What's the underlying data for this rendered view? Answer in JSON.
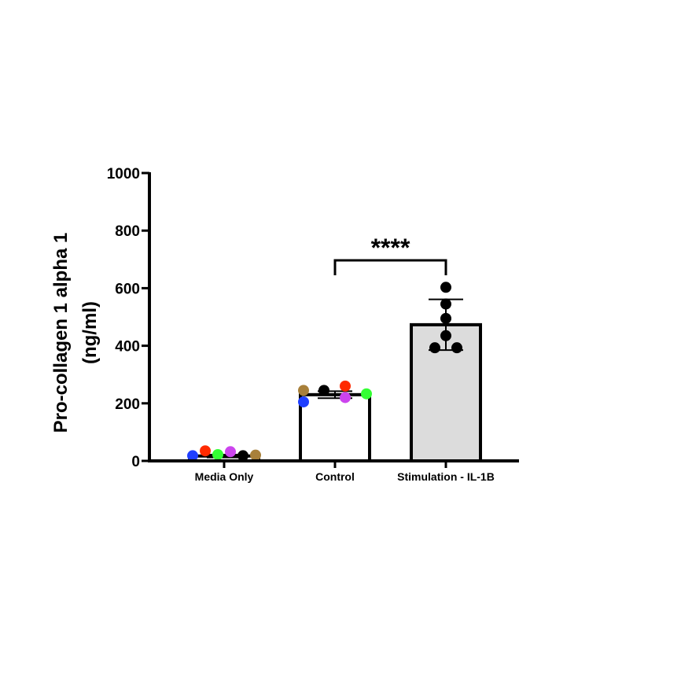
{
  "chart_data": {
    "type": "bar",
    "categories": [
      "Media Only",
      "Control",
      "Stimulation - IL-1B"
    ],
    "values": [
      17,
      230,
      473
    ],
    "error": [
      5,
      12,
      88
    ],
    "bar_fills": [
      "#ffffff",
      "#ffffff",
      "#dcdcdc"
    ],
    "ylabel_lines": [
      "Pro-collagen 1 alpha 1",
      "(ng/ml)"
    ],
    "xlabel": "",
    "ylim": [
      0,
      1000
    ],
    "yticks": [
      0,
      200,
      400,
      600,
      800,
      1000
    ],
    "points": [
      [
        {
          "v": 18,
          "color": "#1f3fff"
        },
        {
          "v": 35,
          "color": "#ff2a00"
        },
        {
          "v": 22,
          "color": "#33ff33"
        },
        {
          "v": 32,
          "color": "#cc44ee"
        },
        {
          "v": 18,
          "color": "#000000"
        },
        {
          "v": 20,
          "color": "#a8803a"
        }
      ],
      [
        {
          "v": 205,
          "color": "#1f3fff"
        },
        {
          "v": 245,
          "color": "#a8803a"
        },
        {
          "v": 245,
          "color": "#000000"
        },
        {
          "v": 260,
          "color": "#ff2a00"
        },
        {
          "v": 220,
          "color": "#cc44ee"
        },
        {
          "v": 233,
          "color": "#33ff33"
        }
      ],
      [
        {
          "v": 393,
          "color": "#000000"
        },
        {
          "v": 393,
          "color": "#000000"
        },
        {
          "v": 435,
          "color": "#000000"
        },
        {
          "v": 495,
          "color": "#000000"
        },
        {
          "v": 545,
          "color": "#000000"
        },
        {
          "v": 603,
          "color": "#000000"
        }
      ]
    ],
    "significance": {
      "from": 1,
      "to": 2,
      "label": "****"
    },
    "grid": false,
    "legend": "none"
  }
}
